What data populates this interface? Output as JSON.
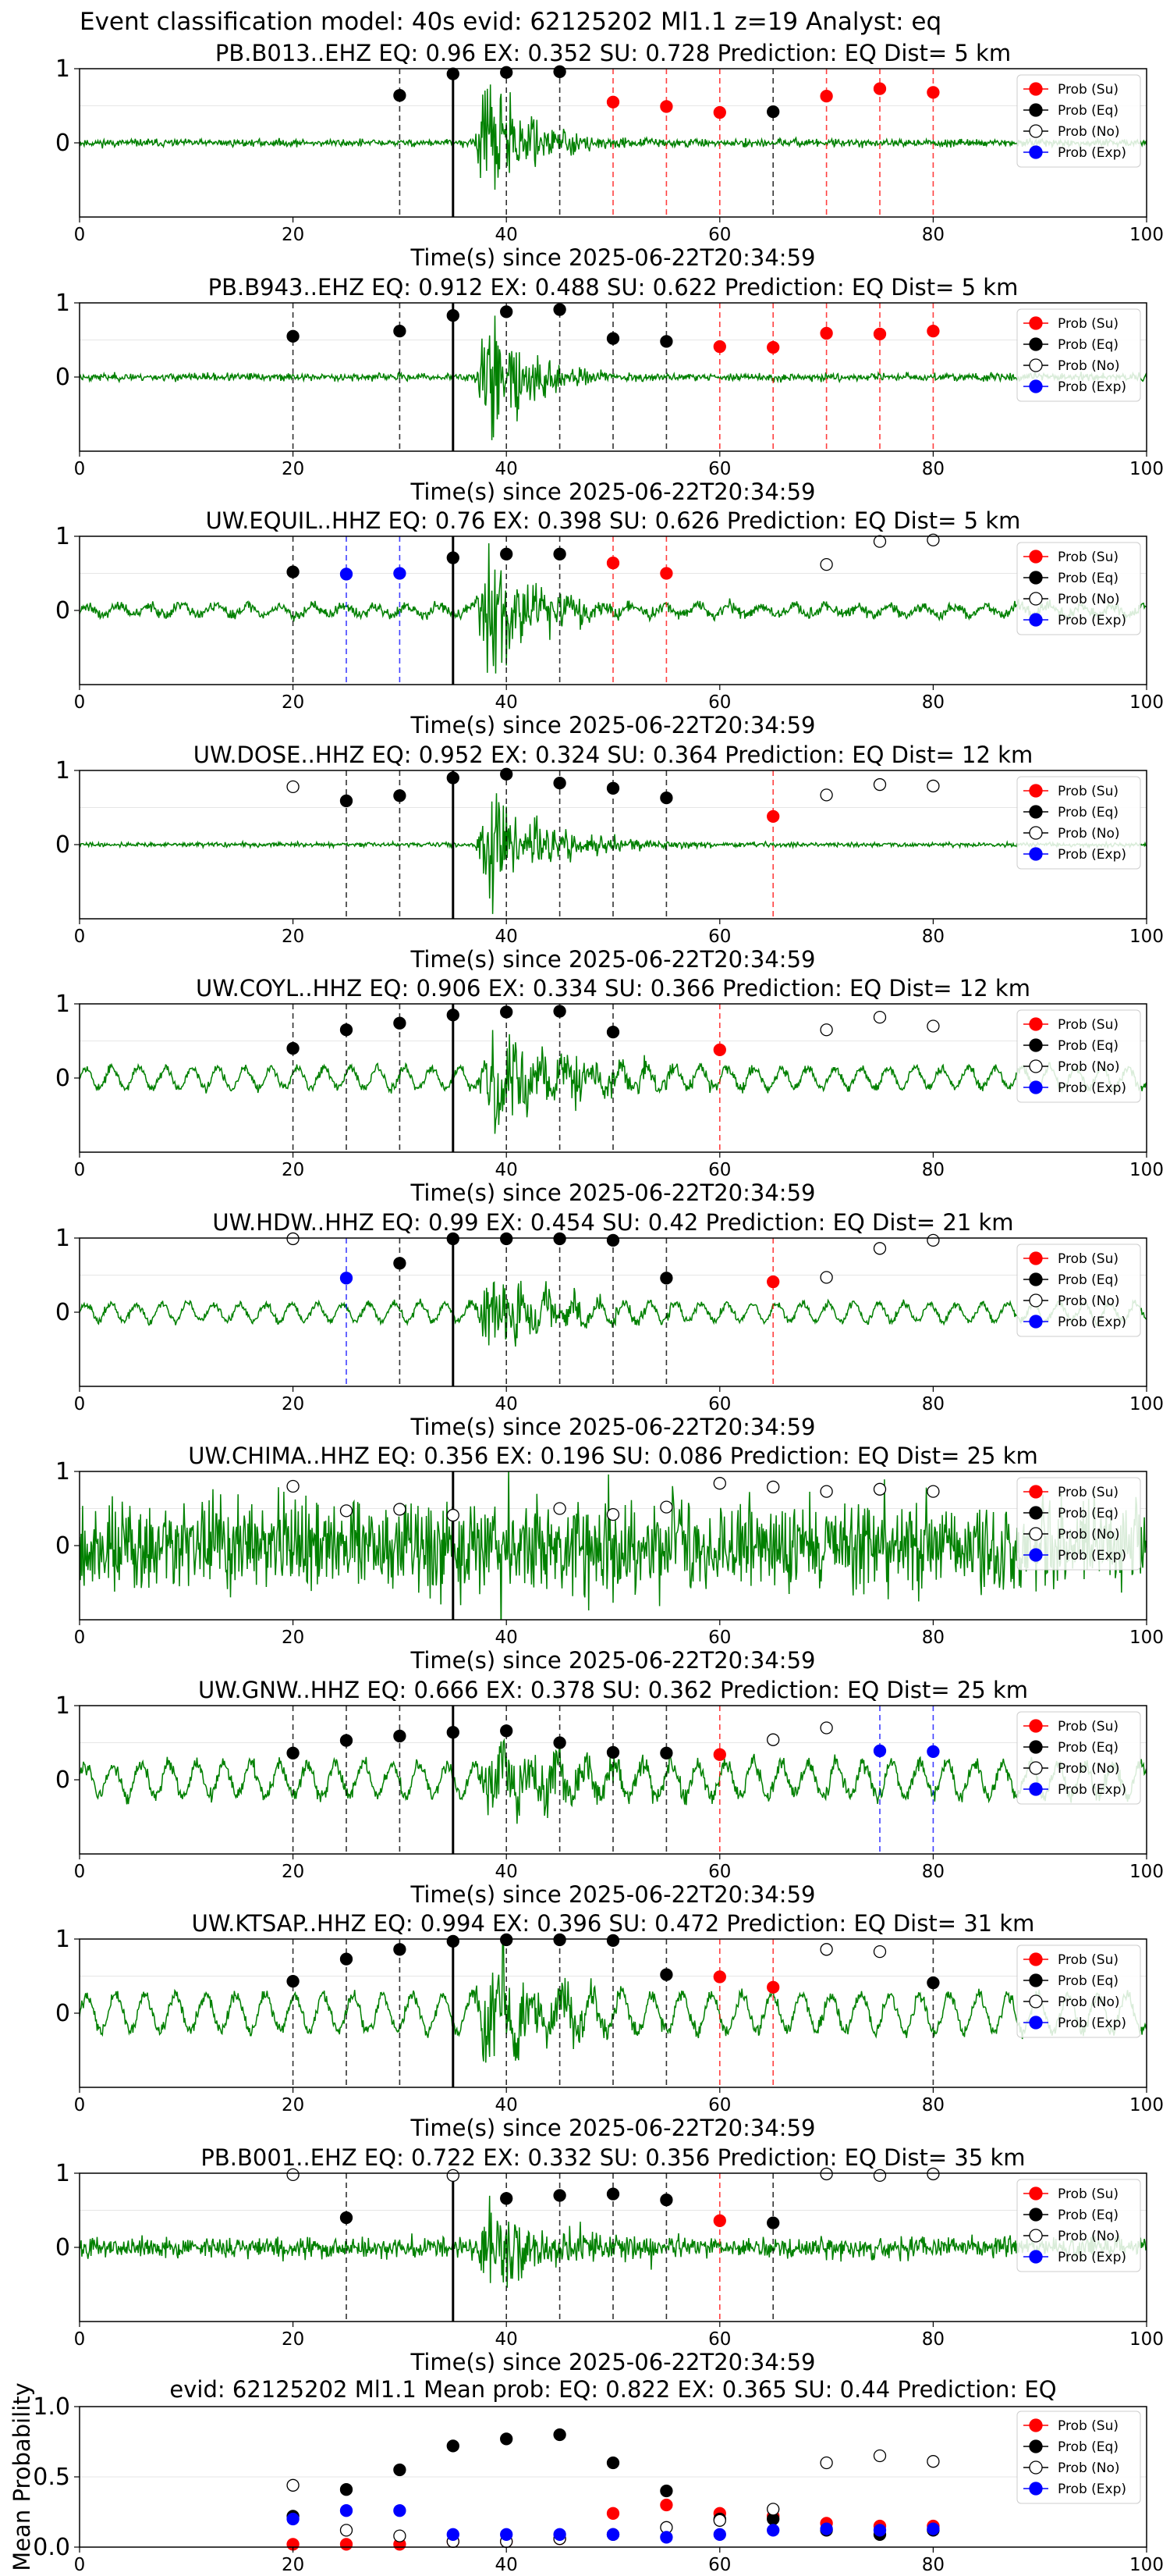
{
  "figure_title": "Event classification model: 40s evid: 62125202 Ml1.1 z=19 Analyst: eq",
  "colors": {
    "waveform": "#008000",
    "su": "#ff0000",
    "eq": "#000000",
    "no": "#ffffff",
    "exp": "#0000ff",
    "pick": "#000000"
  },
  "legend_labels": [
    "Prob (Su)",
    "Prob (Eq)",
    "Prob (No)",
    "Prob (Exp)"
  ],
  "chart_data": [
    {
      "type": "line",
      "station": "PB.B013..EHZ",
      "title": "PB.B013..EHZ   EQ: 0.96  EX: 0.352  SU: 0.728   Prediction: EQ    Dist= 5 km",
      "xlabel": "Time(s) since 2025-06-22T20:34:59",
      "xlim": [
        0,
        100
      ],
      "ylim": [
        -1,
        1
      ],
      "xticks": [
        "0",
        "20",
        "40",
        "60",
        "80",
        "100"
      ],
      "yticks": [
        "0",
        "1"
      ],
      "legend": "top-right",
      "noise": 0.035,
      "burst": 0.85,
      "burst_decay": 4,
      "period": 0,
      "swell": 0,
      "seed": 11,
      "pick_time": 35,
      "points": [
        {
          "t": 30,
          "p": 0.64,
          "c": "eq"
        },
        {
          "t": 35,
          "p": 0.93,
          "c": "eq"
        },
        {
          "t": 40,
          "p": 0.95,
          "c": "eq"
        },
        {
          "t": 45,
          "p": 0.96,
          "c": "eq"
        },
        {
          "t": 50,
          "p": 0.55,
          "c": "su"
        },
        {
          "t": 55,
          "p": 0.49,
          "c": "su"
        },
        {
          "t": 60,
          "p": 0.41,
          "c": "su"
        },
        {
          "t": 65,
          "p": 0.42,
          "c": "eq"
        },
        {
          "t": 70,
          "p": 0.63,
          "c": "su"
        },
        {
          "t": 75,
          "p": 0.73,
          "c": "su"
        },
        {
          "t": 80,
          "p": 0.68,
          "c": "su"
        }
      ]
    },
    {
      "type": "line",
      "station": "PB.B943..EHZ",
      "title": "PB.B943..EHZ   EQ: 0.912  EX: 0.488  SU: 0.622   Prediction: EQ    Dist= 5 km",
      "xlabel": "Time(s) since 2025-06-22T20:34:59",
      "xlim": [
        0,
        100
      ],
      "ylim": [
        -1,
        1
      ],
      "xticks": [
        "0",
        "20",
        "40",
        "60",
        "80",
        "100"
      ],
      "yticks": [
        "0",
        "1"
      ],
      "legend": "top-right",
      "noise": 0.035,
      "burst": 0.8,
      "burst_decay": 4,
      "period": 0,
      "swell": 0,
      "seed": 23,
      "pick_time": 35,
      "points": [
        {
          "t": 20,
          "p": 0.55,
          "c": "eq"
        },
        {
          "t": 30,
          "p": 0.62,
          "c": "eq"
        },
        {
          "t": 35,
          "p": 0.83,
          "c": "eq"
        },
        {
          "t": 40,
          "p": 0.88,
          "c": "eq"
        },
        {
          "t": 45,
          "p": 0.91,
          "c": "eq"
        },
        {
          "t": 50,
          "p": 0.52,
          "c": "eq"
        },
        {
          "t": 55,
          "p": 0.48,
          "c": "eq"
        },
        {
          "t": 60,
          "p": 0.41,
          "c": "su"
        },
        {
          "t": 65,
          "p": 0.4,
          "c": "su"
        },
        {
          "t": 70,
          "p": 0.59,
          "c": "su"
        },
        {
          "t": 75,
          "p": 0.58,
          "c": "su"
        },
        {
          "t": 80,
          "p": 0.62,
          "c": "su"
        }
      ]
    },
    {
      "type": "line",
      "station": "UW.EQUIL..HHZ",
      "title": "UW.EQUIL..HHZ   EQ: 0.76  EX: 0.398  SU: 0.626   Prediction: EQ    Dist= 5 km",
      "xlabel": "Time(s) since 2025-06-22T20:34:59",
      "xlim": [
        0,
        100
      ],
      "ylim": [
        -1,
        1
      ],
      "xticks": [
        "0",
        "20",
        "40",
        "60",
        "80",
        "100"
      ],
      "yticks": [
        "0",
        "1"
      ],
      "legend": "top-right",
      "noise": 0.05,
      "burst": 0.75,
      "burst_decay": 5,
      "period": 3,
      "swell": 0.06,
      "seed": 37,
      "pick_time": 35,
      "points": [
        {
          "t": 20,
          "p": 0.52,
          "c": "eq"
        },
        {
          "t": 25,
          "p": 0.49,
          "c": "exp"
        },
        {
          "t": 30,
          "p": 0.5,
          "c": "exp"
        },
        {
          "t": 35,
          "p": 0.71,
          "c": "eq"
        },
        {
          "t": 40,
          "p": 0.76,
          "c": "eq"
        },
        {
          "t": 45,
          "p": 0.76,
          "c": "eq"
        },
        {
          "t": 50,
          "p": 0.64,
          "c": "su"
        },
        {
          "t": 55,
          "p": 0.5,
          "c": "su"
        },
        {
          "t": 70,
          "p": 0.62,
          "c": "no"
        },
        {
          "t": 75,
          "p": 0.93,
          "c": "no"
        },
        {
          "t": 80,
          "p": 0.95,
          "c": "no"
        }
      ]
    },
    {
      "type": "line",
      "station": "UW.DOSE..HHZ",
      "title": "UW.DOSE..HHZ   EQ: 0.952  EX: 0.324  SU: 0.364   Prediction: EQ    Dist= 12 km",
      "xlabel": "Time(s) since 2025-06-22T20:34:59",
      "xlim": [
        0,
        100
      ],
      "ylim": [
        -1,
        1
      ],
      "xticks": [
        "0",
        "20",
        "40",
        "60",
        "80",
        "100"
      ],
      "yticks": [
        "0",
        "1"
      ],
      "legend": "top-right",
      "noise": 0.02,
      "burst": 0.55,
      "burst_decay": 6,
      "period": 0,
      "swell": 0,
      "seed": 41,
      "pick_time": 35,
      "points": [
        {
          "t": 20,
          "p": 0.78,
          "c": "no"
        },
        {
          "t": 25,
          "p": 0.59,
          "c": "eq"
        },
        {
          "t": 30,
          "p": 0.66,
          "c": "eq"
        },
        {
          "t": 35,
          "p": 0.9,
          "c": "eq"
        },
        {
          "t": 40,
          "p": 0.95,
          "c": "eq"
        },
        {
          "t": 45,
          "p": 0.83,
          "c": "eq"
        },
        {
          "t": 50,
          "p": 0.76,
          "c": "eq"
        },
        {
          "t": 55,
          "p": 0.63,
          "c": "eq"
        },
        {
          "t": 65,
          "p": 0.38,
          "c": "su"
        },
        {
          "t": 70,
          "p": 0.67,
          "c": "no"
        },
        {
          "t": 75,
          "p": 0.81,
          "c": "no"
        },
        {
          "t": 80,
          "p": 0.79,
          "c": "no"
        }
      ]
    },
    {
      "type": "line",
      "station": "UW.COYL..HHZ",
      "title": "UW.COYL..HHZ   EQ: 0.906  EX: 0.334  SU: 0.366   Prediction: EQ    Dist= 12 km",
      "xlabel": "Time(s) since 2025-06-22T20:34:59",
      "xlim": [
        0,
        100
      ],
      "ylim": [
        -1,
        1
      ],
      "xticks": [
        "0",
        "20",
        "40",
        "60",
        "80",
        "100"
      ],
      "yticks": [
        "0",
        "1"
      ],
      "legend": "top-right",
      "noise": 0.04,
      "burst": 0.6,
      "burst_decay": 8,
      "period": 2.5,
      "swell": 0.14,
      "seed": 53,
      "pick_time": 35,
      "points": [
        {
          "t": 20,
          "p": 0.4,
          "c": "eq"
        },
        {
          "t": 25,
          "p": 0.65,
          "c": "eq"
        },
        {
          "t": 30,
          "p": 0.74,
          "c": "eq"
        },
        {
          "t": 35,
          "p": 0.85,
          "c": "eq"
        },
        {
          "t": 40,
          "p": 0.89,
          "c": "eq"
        },
        {
          "t": 45,
          "p": 0.9,
          "c": "eq"
        },
        {
          "t": 50,
          "p": 0.62,
          "c": "eq"
        },
        {
          "t": 60,
          "p": 0.38,
          "c": "su"
        },
        {
          "t": 70,
          "p": 0.65,
          "c": "no"
        },
        {
          "t": 75,
          "p": 0.82,
          "c": "no"
        },
        {
          "t": 80,
          "p": 0.7,
          "c": "no"
        }
      ]
    },
    {
      "type": "line",
      "station": "UW.HDW..HHZ",
      "title": "UW.HDW..HHZ   EQ: 0.99  EX: 0.454  SU: 0.42   Prediction: EQ    Dist= 21 km",
      "xlabel": "Time(s) since 2025-06-22T20:34:59",
      "xlim": [
        0,
        100
      ],
      "ylim": [
        -1,
        1
      ],
      "xticks": [
        "0",
        "20",
        "40",
        "60",
        "80",
        "100"
      ],
      "yticks": [
        "0",
        "1"
      ],
      "legend": "top-right",
      "noise": 0.035,
      "burst": 0.55,
      "burst_decay": 6,
      "period": 2.4,
      "swell": 0.12,
      "seed": 67,
      "pick_time": 35,
      "points": [
        {
          "t": 20,
          "p": 0.99,
          "c": "no"
        },
        {
          "t": 25,
          "p": 0.46,
          "c": "exp"
        },
        {
          "t": 30,
          "p": 0.66,
          "c": "eq"
        },
        {
          "t": 35,
          "p": 0.99,
          "c": "eq"
        },
        {
          "t": 40,
          "p": 0.99,
          "c": "eq"
        },
        {
          "t": 45,
          "p": 0.99,
          "c": "eq"
        },
        {
          "t": 50,
          "p": 0.97,
          "c": "eq"
        },
        {
          "t": 55,
          "p": 0.46,
          "c": "eq"
        },
        {
          "t": 65,
          "p": 0.41,
          "c": "su"
        },
        {
          "t": 70,
          "p": 0.47,
          "c": "no"
        },
        {
          "t": 75,
          "p": 0.86,
          "c": "no"
        },
        {
          "t": 80,
          "p": 0.97,
          "c": "no"
        }
      ]
    },
    {
      "type": "line",
      "station": "UW.CHIMA..HHZ",
      "title": "UW.CHIMA..HHZ   EQ: 0.356  EX: 0.196  SU: 0.086   Prediction: EQ    Dist= 25 km",
      "xlabel": "Time(s) since 2025-06-22T20:34:59",
      "xlim": [
        0,
        100
      ],
      "ylim": [
        -1,
        1
      ],
      "xticks": [
        "0",
        "20",
        "40",
        "60",
        "80",
        "100"
      ],
      "yticks": [
        "0",
        "1"
      ],
      "legend": "top-right",
      "noise": 0.45,
      "burst": 0.25,
      "burst_decay": 15,
      "period": 0,
      "swell": 0,
      "seed": 79,
      "pick_time": 35,
      "points": [
        {
          "t": 20,
          "p": 0.8,
          "c": "no"
        },
        {
          "t": 25,
          "p": 0.47,
          "c": "no"
        },
        {
          "t": 30,
          "p": 0.49,
          "c": "no"
        },
        {
          "t": 35,
          "p": 0.41,
          "c": "no"
        },
        {
          "t": 45,
          "p": 0.5,
          "c": "no"
        },
        {
          "t": 50,
          "p": 0.42,
          "c": "no"
        },
        {
          "t": 55,
          "p": 0.52,
          "c": "no"
        },
        {
          "t": 60,
          "p": 0.84,
          "c": "no"
        },
        {
          "t": 65,
          "p": 0.79,
          "c": "no"
        },
        {
          "t": 70,
          "p": 0.73,
          "c": "no"
        },
        {
          "t": 75,
          "p": 0.76,
          "c": "no"
        },
        {
          "t": 80,
          "p": 0.73,
          "c": "no"
        }
      ]
    },
    {
      "type": "line",
      "station": "UW.GNW..HHZ",
      "title": "UW.GNW..HHZ   EQ: 0.666  EX: 0.378  SU: 0.362   Prediction: EQ    Dist= 25 km",
      "xlabel": "Time(s) since 2025-06-22T20:34:59",
      "xlim": [
        0,
        100
      ],
      "ylim": [
        -1,
        1
      ],
      "xticks": [
        "0",
        "20",
        "40",
        "60",
        "80",
        "100"
      ],
      "yticks": [
        "0",
        "1"
      ],
      "legend": "top-right",
      "noise": 0.07,
      "burst": 0.45,
      "burst_decay": 10,
      "period": 2.6,
      "swell": 0.22,
      "seed": 83,
      "pick_time": 35,
      "points": [
        {
          "t": 20,
          "p": 0.36,
          "c": "eq"
        },
        {
          "t": 25,
          "p": 0.53,
          "c": "eq"
        },
        {
          "t": 30,
          "p": 0.59,
          "c": "eq"
        },
        {
          "t": 35,
          "p": 0.64,
          "c": "eq"
        },
        {
          "t": 40,
          "p": 0.66,
          "c": "eq"
        },
        {
          "t": 45,
          "p": 0.5,
          "c": "eq"
        },
        {
          "t": 50,
          "p": 0.37,
          "c": "eq"
        },
        {
          "t": 55,
          "p": 0.36,
          "c": "eq"
        },
        {
          "t": 60,
          "p": 0.34,
          "c": "su"
        },
        {
          "t": 65,
          "p": 0.54,
          "c": "no"
        },
        {
          "t": 70,
          "p": 0.7,
          "c": "no"
        },
        {
          "t": 75,
          "p": 0.39,
          "c": "exp"
        },
        {
          "t": 80,
          "p": 0.38,
          "c": "exp"
        }
      ]
    },
    {
      "type": "line",
      "station": "UW.KTSAP..HHZ",
      "title": "UW.KTSAP..HHZ   EQ: 0.994  EX: 0.396  SU: 0.472   Prediction: EQ    Dist= 31 km",
      "xlabel": "Time(s) since 2025-06-22T20:34:59",
      "xlim": [
        0,
        100
      ],
      "ylim": [
        -1,
        1
      ],
      "xticks": [
        "0",
        "20",
        "40",
        "60",
        "80",
        "100"
      ],
      "yticks": [
        "0",
        "1"
      ],
      "legend": "top-right",
      "noise": 0.06,
      "burst": 0.75,
      "burst_decay": 6,
      "period": 2.8,
      "swell": 0.25,
      "seed": 97,
      "pick_time": 35,
      "points": [
        {
          "t": 20,
          "p": 0.43,
          "c": "eq"
        },
        {
          "t": 25,
          "p": 0.73,
          "c": "eq"
        },
        {
          "t": 30,
          "p": 0.86,
          "c": "eq"
        },
        {
          "t": 35,
          "p": 0.97,
          "c": "eq"
        },
        {
          "t": 40,
          "p": 0.99,
          "c": "eq"
        },
        {
          "t": 45,
          "p": 0.99,
          "c": "eq"
        },
        {
          "t": 50,
          "p": 0.98,
          "c": "eq"
        },
        {
          "t": 55,
          "p": 0.52,
          "c": "eq"
        },
        {
          "t": 60,
          "p": 0.49,
          "c": "su"
        },
        {
          "t": 65,
          "p": 0.35,
          "c": "su"
        },
        {
          "t": 70,
          "p": 0.86,
          "c": "no"
        },
        {
          "t": 75,
          "p": 0.83,
          "c": "no"
        },
        {
          "t": 80,
          "p": 0.41,
          "c": "eq"
        }
      ]
    },
    {
      "type": "line",
      "station": "PB.B001..EHZ",
      "title": "PB.B001..EHZ   EQ: 0.722  EX: 0.332  SU: 0.356   Prediction: EQ    Dist= 35 km",
      "xlabel": "Time(s) since 2025-06-22T20:34:59",
      "xlim": [
        0,
        100
      ],
      "ylim": [
        -1,
        1
      ],
      "xticks": [
        "0",
        "20",
        "40",
        "60",
        "80",
        "100"
      ],
      "yticks": [
        "0",
        "1"
      ],
      "legend": "top-right",
      "noise": 0.1,
      "burst": 0.45,
      "burst_decay": 8,
      "period": 0,
      "swell": 0,
      "seed": 101,
      "pick_time": 35,
      "points": [
        {
          "t": 20,
          "p": 0.98,
          "c": "no"
        },
        {
          "t": 25,
          "p": 0.4,
          "c": "eq"
        },
        {
          "t": 35,
          "p": 0.97,
          "c": "no"
        },
        {
          "t": 40,
          "p": 0.66,
          "c": "eq"
        },
        {
          "t": 45,
          "p": 0.7,
          "c": "eq"
        },
        {
          "t": 50,
          "p": 0.72,
          "c": "eq"
        },
        {
          "t": 55,
          "p": 0.64,
          "c": "eq"
        },
        {
          "t": 60,
          "p": 0.36,
          "c": "su"
        },
        {
          "t": 65,
          "p": 0.33,
          "c": "eq"
        },
        {
          "t": 70,
          "p": 0.99,
          "c": "no"
        },
        {
          "t": 75,
          "p": 0.97,
          "c": "no"
        },
        {
          "t": 80,
          "p": 0.99,
          "c": "no"
        }
      ]
    },
    {
      "type": "scatter",
      "title": "evid: 62125202  Ml1.1   Mean prob:   EQ: 0.822  EX: 0.365  SU: 0.44   Prediction: EQ",
      "ylabel": "Mean Probability",
      "xlim": [
        0,
        100
      ],
      "ylim": [
        0,
        1
      ],
      "xticks": [
        "0",
        "20",
        "40",
        "60",
        "80",
        "100"
      ],
      "yticks": [
        "0.0",
        "0.5",
        "1.0"
      ],
      "legend": "top-right",
      "x": [
        20,
        25,
        30,
        35,
        40,
        45,
        50,
        55,
        60,
        65,
        70,
        75,
        80
      ],
      "series": [
        {
          "name": "Prob (Su)",
          "color": "su",
          "values": [
            0.02,
            0.02,
            0.02,
            0.04,
            0.04,
            0.06,
            0.24,
            0.3,
            0.24,
            0.22,
            0.17,
            0.15,
            0.15
          ]
        },
        {
          "name": "Prob (Eq)",
          "color": "eq",
          "values": [
            0.22,
            0.41,
            0.55,
            0.72,
            0.77,
            0.8,
            0.6,
            0.4,
            0.2,
            0.2,
            0.12,
            0.09,
            0.12
          ]
        },
        {
          "name": "Prob (No)",
          "color": "no",
          "values": [
            0.44,
            0.12,
            0.08,
            0.04,
            0.04,
            0.06,
            0.09,
            0.14,
            0.19,
            0.27,
            0.6,
            0.65,
            0.61
          ]
        },
        {
          "name": "Prob (Exp)",
          "color": "exp",
          "values": [
            0.2,
            0.26,
            0.26,
            0.09,
            0.09,
            0.09,
            0.09,
            0.07,
            0.09,
            0.12,
            0.13,
            0.12,
            0.13
          ]
        }
      ]
    }
  ]
}
